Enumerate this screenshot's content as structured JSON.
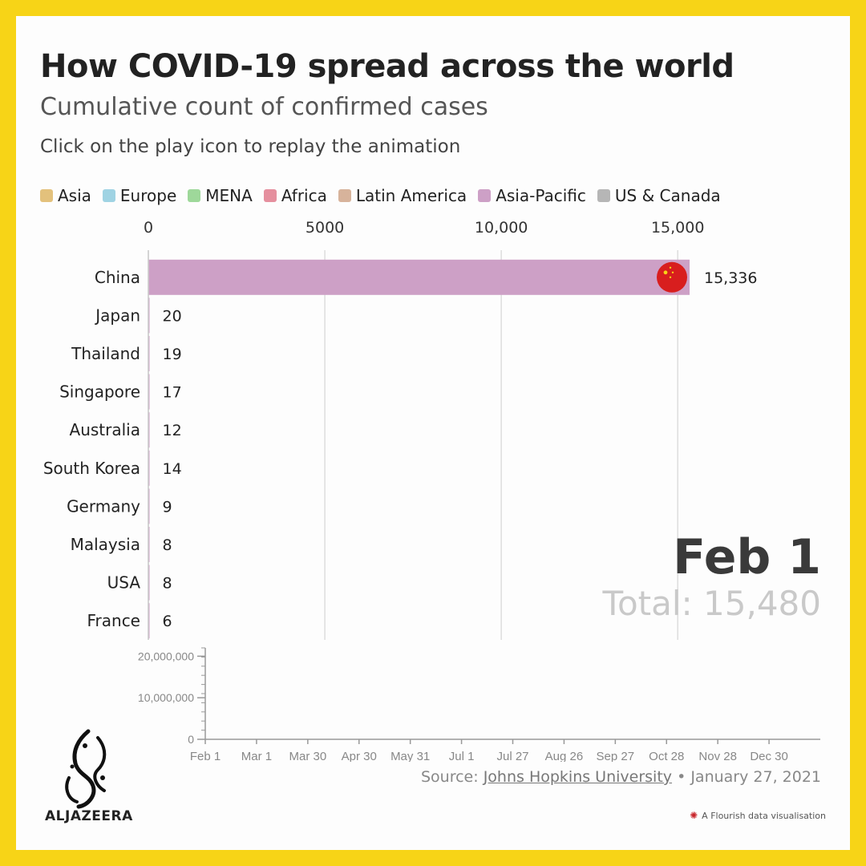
{
  "title": "How COVID-19 spread across the world",
  "subtitle": "Cumulative count of confirmed cases",
  "note": "Click on the play icon to replay the animation",
  "legend": [
    {
      "label": "Asia",
      "color": "#e3c17c"
    },
    {
      "label": "Europe",
      "color": "#9fd3e3"
    },
    {
      "label": "MENA",
      "color": "#9ed89a"
    },
    {
      "label": "Africa",
      "color": "#e58f9e"
    },
    {
      "label": "Latin America",
      "color": "#d7b39b"
    },
    {
      "label": "Asia-Pacific",
      "color": "#cda0c6"
    },
    {
      "label": "US & Canada",
      "color": "#b6b6b6"
    }
  ],
  "chart_data": [
    {
      "type": "bar",
      "orientation": "horizontal",
      "categories": [
        "China",
        "Japan",
        "Thailand",
        "Singapore",
        "Australia",
        "South Korea",
        "Germany",
        "Malaysia",
        "USA",
        "France"
      ],
      "values": [
        15336,
        20,
        19,
        17,
        12,
        14,
        9,
        8,
        8,
        6
      ],
      "value_labels": [
        "15,336",
        "20",
        "19",
        "17",
        "12",
        "14",
        "9",
        "8",
        "8",
        "6"
      ],
      "region": [
        "Asia-Pacific",
        "Asia-Pacific",
        "Asia-Pacific",
        "Asia-Pacific",
        "Asia-Pacific",
        "Asia-Pacific",
        "Europe",
        "Asia-Pacific",
        "US & Canada",
        "Europe"
      ],
      "bar_color": "#cda0c6",
      "xlim": [
        0,
        15336
      ],
      "xticks": [
        0,
        5000,
        10000,
        15000
      ],
      "xtick_labels": [
        "0",
        "5000",
        "10,000",
        "15,000"
      ],
      "grid": true,
      "date_label": "Feb 1",
      "total_label": "Total: 15,480"
    },
    {
      "type": "line",
      "yticks": [
        0,
        10000000,
        20000000
      ],
      "ytick_labels": [
        "0",
        "10,000,000",
        "20,000,000"
      ],
      "ylim": [
        0,
        22000000
      ],
      "xtick_labels": [
        "Feb 1",
        "Mar 1",
        "Mar 30",
        "Apr 30",
        "May 31",
        "Jul 1",
        "Jul 27",
        "Aug 26",
        "Sep 27",
        "Oct 28",
        "Nov 28",
        "Dec 30"
      ],
      "series": []
    }
  ],
  "footer": {
    "source_prefix": "Source: ",
    "source_link": "Johns Hopkins University",
    "source_suffix": " • January 27, 2021",
    "brand": "ALJAZEERA",
    "flourish": "A Flourish data visualisation",
    "flourish_icon": "flourish-burst-icon",
    "logo_icon": "aljazeera-calligraphy-logo-icon"
  }
}
